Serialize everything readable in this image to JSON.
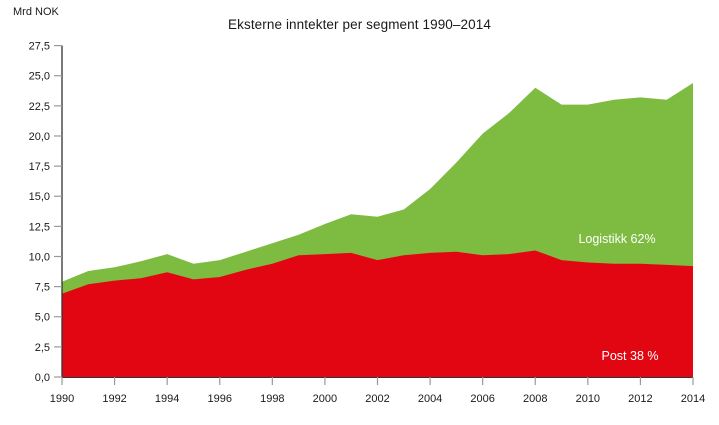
{
  "chart_data": {
    "type": "area",
    "stacked": true,
    "title": "Eksterne inntekter per segment 1990–2014",
    "unit_label": "Mrd NOK",
    "x": [
      1990,
      1991,
      1992,
      1993,
      1994,
      1995,
      1996,
      1997,
      1998,
      1999,
      2000,
      2001,
      2002,
      2003,
      2004,
      2005,
      2006,
      2007,
      2008,
      2009,
      2010,
      2011,
      2012,
      2013,
      2014
    ],
    "series": [
      {
        "name": "Post",
        "area_label": "Post 38 %",
        "color": "#E20613",
        "values": [
          6.9,
          7.7,
          8.0,
          8.2,
          8.7,
          8.1,
          8.3,
          8.9,
          9.4,
          10.1,
          10.2,
          10.3,
          9.7,
          10.1,
          10.3,
          10.4,
          10.1,
          10.2,
          10.5,
          9.7,
          9.5,
          9.4,
          9.4,
          9.3,
          9.2
        ]
      },
      {
        "name": "Logistikk",
        "area_label": "Logistikk 62%",
        "color": "#7EBB41",
        "values": [
          1.0,
          1.1,
          1.1,
          1.4,
          1.5,
          1.3,
          1.4,
          1.5,
          1.7,
          1.7,
          2.5,
          3.2,
          3.6,
          3.8,
          5.3,
          7.4,
          10.1,
          11.7,
          13.5,
          12.9,
          13.1,
          13.6,
          13.8,
          13.7,
          15.2
        ]
      }
    ],
    "ylim": [
      0,
      27.5
    ],
    "y_tick_step": 2.5,
    "y_tick_labels": [
      "0,0",
      "2,5",
      "5,0",
      "7,5",
      "10,0",
      "12,5",
      "15,0",
      "17,5",
      "20,0",
      "22,5",
      "25,0",
      "27,5"
    ],
    "x_tick_years": [
      1990,
      1992,
      1994,
      1996,
      1998,
      2000,
      2002,
      2004,
      2006,
      2008,
      2010,
      2012,
      2014
    ],
    "x_tick_labels": [
      "1990",
      "1992",
      "1994",
      "1996",
      "1998",
      "2000",
      "2002",
      "2004",
      "2006",
      "2008",
      "2010",
      "2012",
      "2014"
    ],
    "grid": false,
    "legend_position": "labels-inside-areas",
    "colors": {
      "axis_line": "#333333",
      "tick_mark": "#999999",
      "text": "#1a1a1a",
      "background": "#ffffff"
    }
  }
}
